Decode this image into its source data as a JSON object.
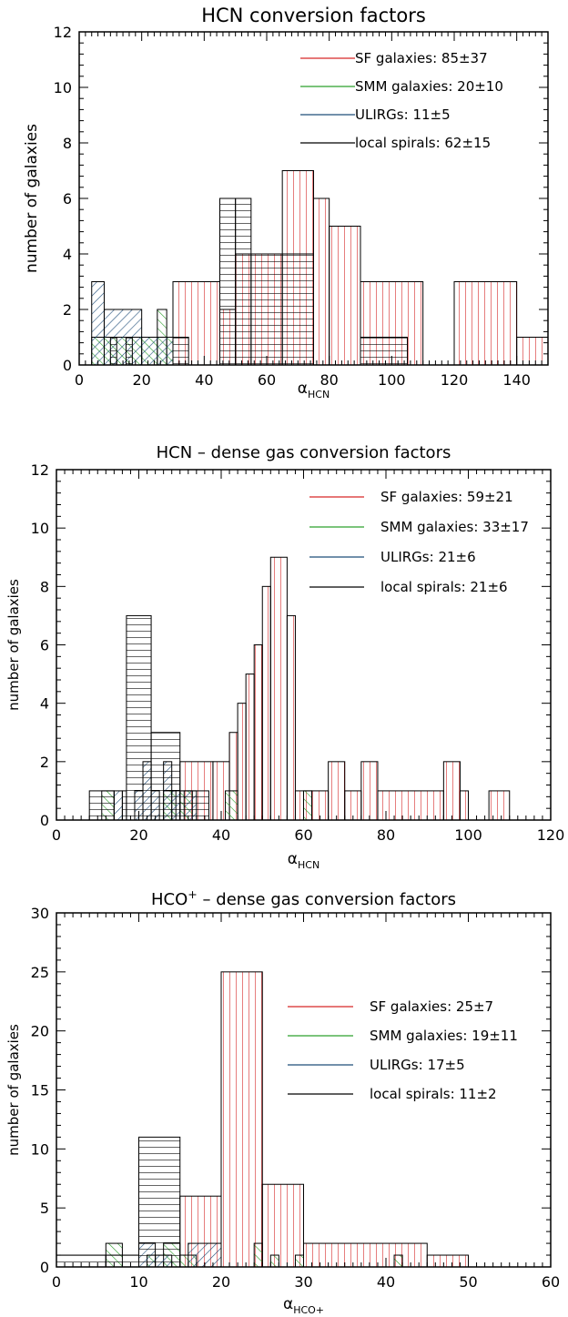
{
  "chart_data": [
    {
      "type": "bar",
      "title": "HCN conversion factors",
      "xlabel": "α",
      "xlabel_sub": "HCN",
      "ylabel": "number of galaxies",
      "xlim": [
        0,
        150
      ],
      "ylim": [
        0,
        12
      ],
      "xticks": [
        0,
        20,
        40,
        60,
        80,
        100,
        120,
        140
      ],
      "yticks": [
        0,
        2,
        4,
        6,
        8,
        10,
        12
      ],
      "legend_position": "top-right",
      "series": [
        {
          "name": "SF galaxies: 85±37",
          "color": "#d62728",
          "hatch": "vertical",
          "bins": [
            [
              30,
              45,
              3
            ],
            [
              45,
              50,
              2
            ],
            [
              50,
              65,
              4
            ],
            [
              65,
              75,
              7
            ],
            [
              75,
              80,
              6
            ],
            [
              80,
              90,
              5
            ],
            [
              90,
              110,
              3
            ],
            [
              120,
              140,
              3
            ],
            [
              140,
              150,
              1
            ]
          ]
        },
        {
          "name": "SMM galaxies: 20±10",
          "color": "#2ca02c",
          "hatch": "diag-down",
          "bins": [
            [
              4,
              25,
              1
            ],
            [
              25,
              28,
              2
            ],
            [
              28,
              30,
              1
            ]
          ]
        },
        {
          "name": "ULIRGs: 11±5",
          "color": "#1f4e79",
          "hatch": "diag-up",
          "bins": [
            [
              4,
              8,
              3
            ],
            [
              8,
              20,
              2
            ],
            [
              20,
              30,
              1
            ]
          ]
        },
        {
          "name": "local spirals: 62±15",
          "color": "#000000",
          "hatch": "horizontal",
          "bins": [
            [
              10,
              12,
              1
            ],
            [
              15,
              17,
              1
            ],
            [
              30,
              35,
              1
            ],
            [
              45,
              50,
              6
            ],
            [
              50,
              55,
              6
            ],
            [
              55,
              75,
              4
            ],
            [
              90,
              105,
              1
            ]
          ]
        }
      ]
    },
    {
      "type": "bar",
      "title": "HCN – dense gas conversion factors",
      "xlabel": "α",
      "xlabel_sub": "HCN",
      "ylabel": "number of galaxies",
      "xlim": [
        0,
        120
      ],
      "ylim": [
        0,
        12
      ],
      "xticks": [
        0,
        20,
        40,
        60,
        80,
        100,
        120
      ],
      "yticks": [
        0,
        2,
        4,
        6,
        8,
        10,
        12
      ],
      "legend_position": "top-right",
      "series": [
        {
          "name": "SF galaxies: 59±21",
          "color": "#d62728",
          "hatch": "vertical",
          "bins": [
            [
              30,
              38,
              2
            ],
            [
              38,
              42,
              2
            ],
            [
              42,
              44,
              3
            ],
            [
              44,
              46,
              4
            ],
            [
              46,
              48,
              5
            ],
            [
              48,
              50,
              6
            ],
            [
              50,
              52,
              8
            ],
            [
              52,
              56,
              9
            ],
            [
              56,
              58,
              7
            ],
            [
              58,
              62,
              1
            ],
            [
              62,
              66,
              1
            ],
            [
              66,
              70,
              2
            ],
            [
              70,
              74,
              1
            ],
            [
              74,
              78,
              2
            ],
            [
              78,
              94,
              1
            ],
            [
              94,
              98,
              2
            ],
            [
              98,
              100,
              1
            ],
            [
              105,
              110,
              1
            ]
          ]
        },
        {
          "name": "SMM galaxies: 33±17",
          "color": "#2ca02c",
          "hatch": "diag-down",
          "bins": [
            [
              11,
              14,
              1
            ],
            [
              26,
              29,
              1
            ],
            [
              30,
              33,
              1
            ],
            [
              41,
              44,
              1
            ],
            [
              60,
              62,
              1
            ]
          ]
        },
        {
          "name": "ULIRGs: 21±6",
          "color": "#1f4e79",
          "hatch": "diag-up",
          "bins": [
            [
              14,
              16,
              1
            ],
            [
              19,
              21,
              1
            ],
            [
              21,
              23,
              2
            ],
            [
              23,
              25,
              1
            ],
            [
              26,
              28,
              2
            ],
            [
              28,
              30,
              1
            ],
            [
              31,
              34,
              1
            ]
          ]
        },
        {
          "name": "local spirals: 21±6",
          "color": "#000000",
          "hatch": "horizontal",
          "bins": [
            [
              8,
              14,
              1
            ],
            [
              16,
              17,
              1
            ],
            [
              17,
              23,
              7
            ],
            [
              23,
              30,
              3
            ],
            [
              30,
              37,
              1
            ]
          ]
        }
      ]
    },
    {
      "type": "bar",
      "title_prefix": "HCO",
      "title_sup": "+",
      "title_suffix": " – dense gas conversion factors",
      "xlabel": "α",
      "xlabel_sub": "HCO+",
      "ylabel": "number of galaxies",
      "xlim": [
        0,
        60
      ],
      "ylim": [
        0,
        30
      ],
      "xticks": [
        0,
        10,
        20,
        30,
        40,
        50,
        60
      ],
      "yticks": [
        0,
        5,
        10,
        15,
        20,
        25,
        30
      ],
      "legend_position": "right",
      "series": [
        {
          "name": "SF galaxies: 25±7",
          "color": "#d62728",
          "hatch": "vertical",
          "bins": [
            [
              15,
              20,
              6
            ],
            [
              20,
              25,
              25
            ],
            [
              25,
              30,
              7
            ],
            [
              30,
              45,
              2
            ],
            [
              45,
              50,
              1
            ]
          ]
        },
        {
          "name": "SMM galaxies: 19±11",
          "color": "#2ca02c",
          "hatch": "diag-down",
          "bins": [
            [
              6,
              8,
              2
            ],
            [
              11,
              12,
              1
            ],
            [
              13,
              15,
              2
            ],
            [
              15,
              17,
              1
            ],
            [
              24,
              25,
              2
            ],
            [
              26,
              27,
              1
            ],
            [
              29,
              30,
              1
            ],
            [
              41,
              42,
              1
            ]
          ]
        },
        {
          "name": "ULIRGs: 17±5",
          "color": "#1f4e79",
          "hatch": "diag-up",
          "bins": [
            [
              10,
              12,
              2
            ],
            [
              12,
              14,
              1
            ],
            [
              16,
              20,
              2
            ]
          ]
        },
        {
          "name": "local spirals: 11±2",
          "color": "#000000",
          "hatch": "horizontal",
          "bins": [
            [
              0,
              6,
              1
            ],
            [
              6,
              10,
              1
            ],
            [
              10,
              15,
              11
            ]
          ]
        }
      ]
    }
  ]
}
